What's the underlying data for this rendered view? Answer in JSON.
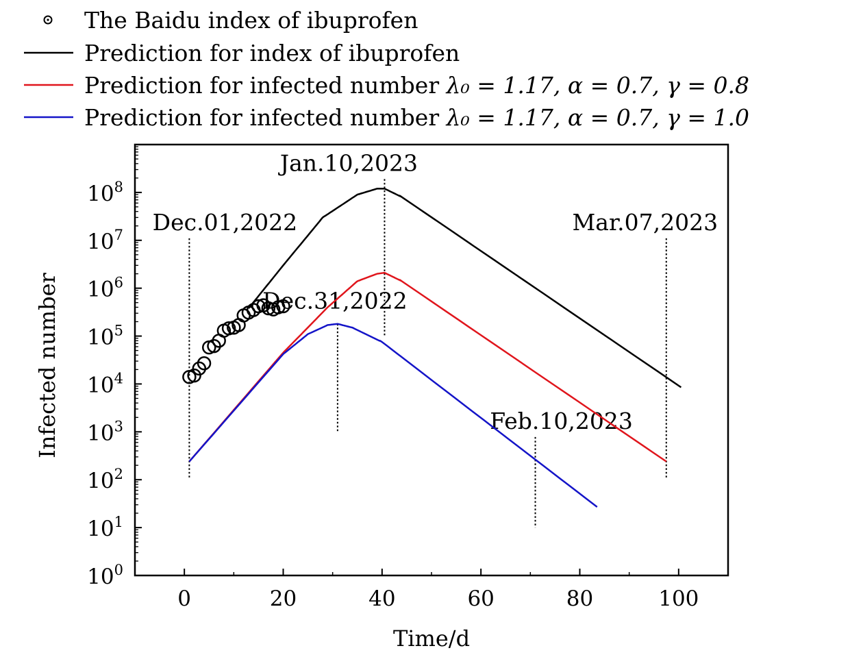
{
  "chart_data": {
    "type": "line",
    "title": "",
    "xlabel": "Time/d",
    "ylabel": "Infected number",
    "xlim": [
      -10,
      110
    ],
    "ylim_log10": [
      0,
      9
    ],
    "x_ticks": [
      0,
      20,
      40,
      60,
      80,
      100
    ],
    "x_tick_labels": [
      "0",
      "20",
      "40",
      "60",
      "80",
      "100"
    ],
    "y_ticks_log10": [
      0,
      1,
      2,
      3,
      4,
      5,
      6,
      7,
      8
    ],
    "y_tick_base": "10",
    "y_tick_exponents": [
      "0",
      "1",
      "2",
      "3",
      "4",
      "5",
      "6",
      "7",
      "8"
    ],
    "legend_position": "top, above plot",
    "series": [
      {
        "name": "The Baidu index of ibuprofen",
        "kind": "markers",
        "marker": "open-circle",
        "color": "#000000",
        "points": [
          [
            1,
            14000
          ],
          [
            2,
            15000
          ],
          [
            3,
            21000
          ],
          [
            4,
            27000
          ],
          [
            5,
            58000
          ],
          [
            6,
            62000
          ],
          [
            7,
            80000
          ],
          [
            8,
            130000
          ],
          [
            9,
            145000
          ],
          [
            10,
            150000
          ],
          [
            11,
            170000
          ],
          [
            12,
            270000
          ],
          [
            13,
            310000
          ],
          [
            14,
            350000
          ],
          [
            15,
            420000
          ],
          [
            16,
            440000
          ],
          [
            17,
            380000
          ],
          [
            18,
            360000
          ],
          [
            19,
            400000
          ],
          [
            20,
            420000
          ]
        ]
      },
      {
        "name": "Prediction for index of ibuprofen",
        "kind": "line",
        "color": "#000000",
        "knots": [
          [
            13,
            380000
          ],
          [
            20,
            3000000
          ],
          [
            28,
            30000000
          ],
          [
            35,
            90000000
          ],
          [
            39,
            120000000
          ],
          [
            40.5,
            120000000
          ],
          [
            44,
            80000000
          ],
          [
            100.5,
            8500
          ]
        ]
      },
      {
        "name": "Prediction for infected number",
        "params": "λ0 = 1.17, α = 0.7, γ = 0.8",
        "kind": "line",
        "color": "#e0151c",
        "knots": [
          [
            1,
            240
          ],
          [
            20,
            45000
          ],
          [
            29,
            400000
          ],
          [
            35,
            1400000
          ],
          [
            39,
            2000000
          ],
          [
            40.5,
            2100000
          ],
          [
            44,
            1400000
          ],
          [
            97.5,
            240
          ]
        ]
      },
      {
        "name": "Prediction for infected number",
        "params": "λ0 = 1.17, α = 0.7, γ = 1.0",
        "kind": "line",
        "color": "#1414c8",
        "knots": [
          [
            1,
            240
          ],
          [
            20,
            42000
          ],
          [
            25,
            110000
          ],
          [
            29,
            170000
          ],
          [
            31,
            180000
          ],
          [
            34,
            150000
          ],
          [
            40,
            75000
          ],
          [
            83.5,
            27
          ]
        ]
      }
    ],
    "annotations": [
      {
        "label": "Dec.01,2022",
        "x": 1,
        "y_from": 110,
        "y_to": 11000000
      },
      {
        "label": "Jan.10,2023",
        "x": 40.5,
        "y_from": 95000,
        "y_to": 190000000
      },
      {
        "label": "Dec.31,2022",
        "x": 31,
        "y_from": 1000,
        "y_to": 180000
      },
      {
        "label": "Feb.10,2023",
        "x": 71,
        "y_from": 10,
        "y_to": 780
      },
      {
        "label": "Mar.07,2023",
        "x": 97.5,
        "y_from": 110,
        "y_to": 11000000
      }
    ]
  },
  "legend": {
    "items": [
      {
        "label": "The Baidu index of ibuprofen",
        "eq": "",
        "color": "#000000",
        "symbol": "circle-dot"
      },
      {
        "label": "Prediction for index of ibuprofen",
        "eq": "",
        "color": "#000000",
        "symbol": "line"
      },
      {
        "label": "Prediction for infected number",
        "eq": "λ₀ = 1.17, α = 0.7, γ = 0.8",
        "color": "#e0151c",
        "symbol": "line"
      },
      {
        "label": "Prediction for infected number",
        "eq": "λ₀ = 1.17, α = 0.7, γ = 1.0",
        "color": "#1414c8",
        "symbol": "line"
      }
    ]
  }
}
